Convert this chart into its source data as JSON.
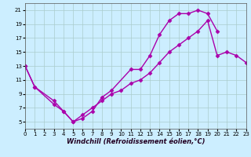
{
  "xlabel": "Windchill (Refroidissement éolien,°C)",
  "bg_color": "#cceeff",
  "line_color": "#aa00aa",
  "grid_color": "#aacccc",
  "xlim": [
    0,
    23
  ],
  "ylim": [
    4,
    22
  ],
  "xticks": [
    0,
    1,
    2,
    3,
    4,
    5,
    6,
    7,
    8,
    9,
    10,
    11,
    12,
    13,
    14,
    15,
    16,
    17,
    18,
    19,
    20,
    21,
    22,
    23
  ],
  "yticks": [
    5,
    7,
    9,
    11,
    13,
    15,
    17,
    19,
    21
  ],
  "line1_x": [
    0,
    1,
    3,
    4,
    5,
    6,
    7,
    8,
    9,
    11,
    12,
    13,
    14,
    15,
    16,
    17,
    18,
    19,
    20
  ],
  "line1_y": [
    13,
    10,
    8,
    6.5,
    5,
    5.5,
    6.5,
    8.5,
    9.5,
    12.5,
    12.5,
    14.5,
    17.5,
    19.5,
    20.5,
    20.5,
    21,
    20.5,
    18
  ],
  "line2_x": [
    0,
    1,
    3,
    4,
    5,
    6,
    7,
    8,
    9,
    10,
    11,
    12,
    13,
    14,
    15,
    16,
    17,
    18,
    19,
    20,
    21,
    22,
    23
  ],
  "line2_y": [
    13,
    10,
    7.5,
    6.5,
    5,
    6,
    7,
    8,
    9,
    9.5,
    10.5,
    11,
    12,
    13.5,
    15,
    16,
    17,
    18,
    19.5,
    14.5,
    15,
    14.5,
    13.5
  ],
  "marker": "D",
  "markersize": 2.5,
  "linewidth": 1.0,
  "tick_labelsize": 5,
  "xlabel_fontsize": 6
}
